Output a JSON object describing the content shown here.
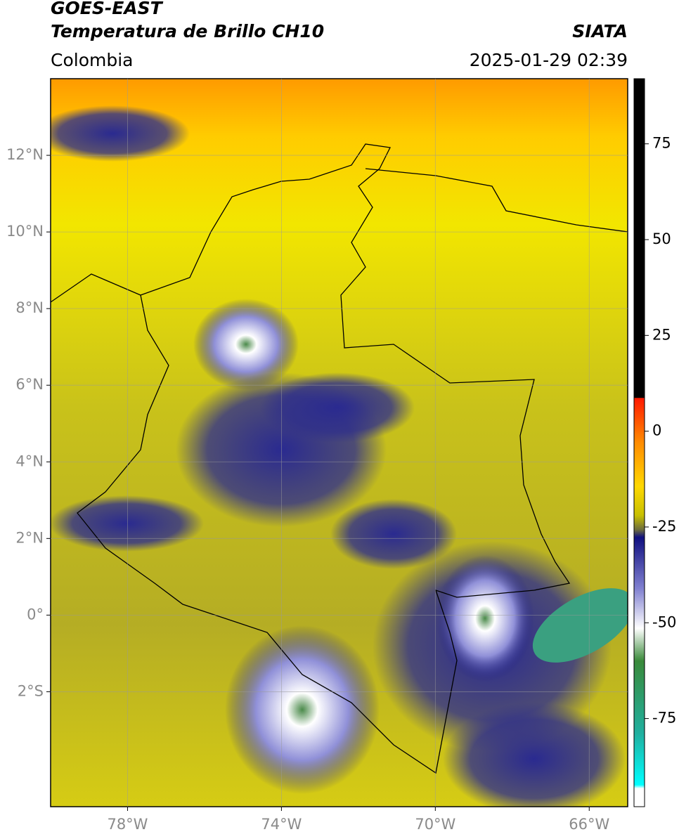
{
  "header": {
    "title": "GOES-EAST",
    "subtitle": "Temperatura de Brillo CH10",
    "source": "SIATA",
    "region": "Colombia",
    "datetime": "2025-01-29 02:39"
  },
  "map": {
    "xlim": [
      -80,
      -65
    ],
    "ylim": [
      -5,
      14
    ],
    "xticks": [
      {
        "value": -78,
        "label": "78°W"
      },
      {
        "value": -74,
        "label": "74°W"
      },
      {
        "value": -70,
        "label": "70°W"
      },
      {
        "value": -66,
        "label": "66°W"
      }
    ],
    "yticks": [
      {
        "value": 12,
        "label": "12°N"
      },
      {
        "value": 10,
        "label": "10°N"
      },
      {
        "value": 8,
        "label": "8°N"
      },
      {
        "value": 6,
        "label": "6°N"
      },
      {
        "value": 4,
        "label": "4°N"
      },
      {
        "value": 2,
        "label": "2°N"
      },
      {
        "value": 0,
        "label": "0°"
      },
      {
        "value": -2,
        "label": "2°S"
      }
    ],
    "grid": true
  },
  "colorbar": {
    "lim": [
      -98,
      92
    ],
    "ticks": [
      -75,
      -50,
      -25,
      0,
      25,
      50,
      75
    ]
  }
}
